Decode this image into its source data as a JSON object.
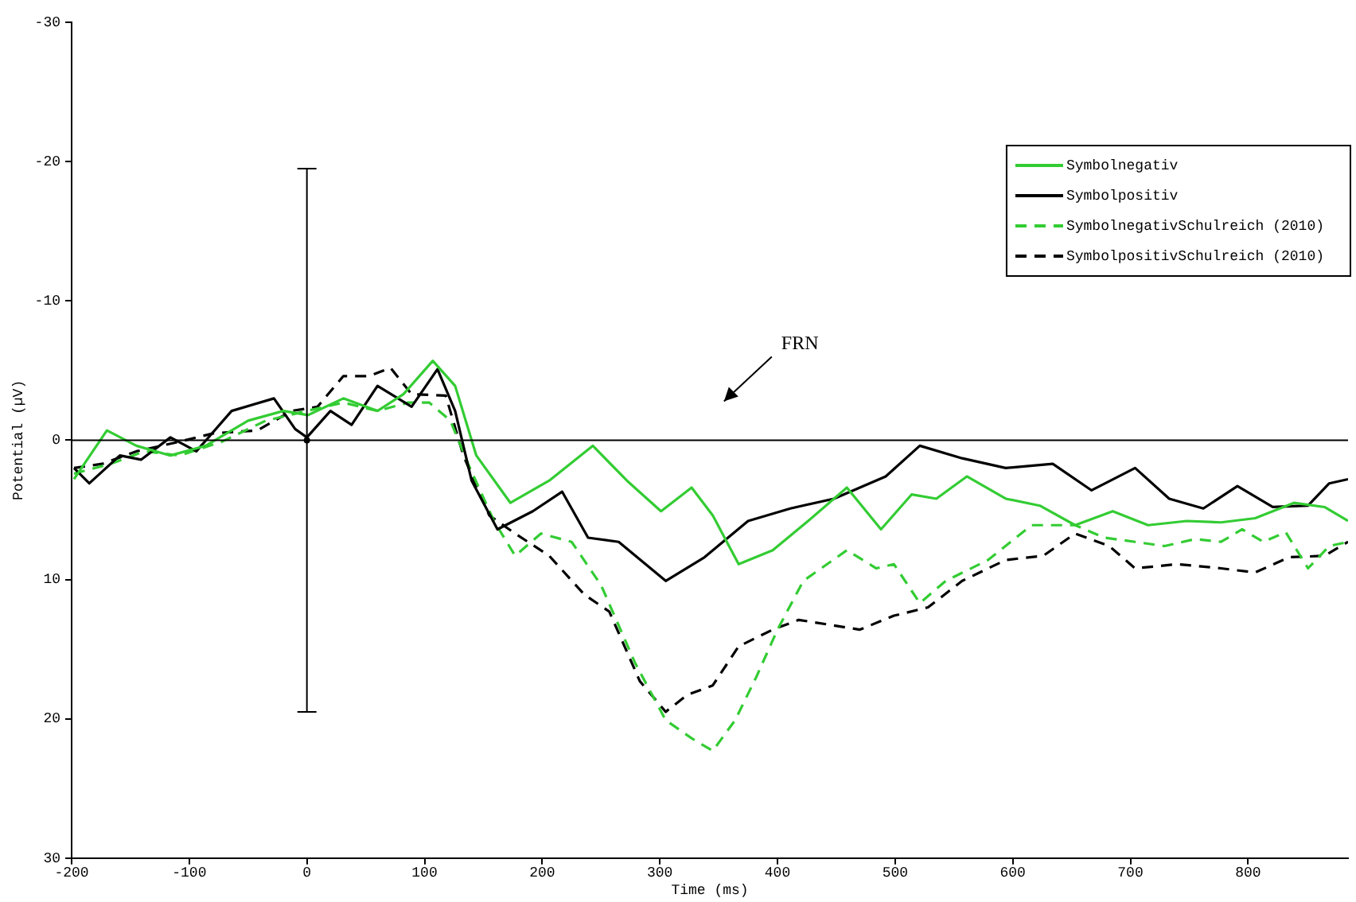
{
  "chart_data": {
    "type": "line",
    "xlabel": "Time (ms)",
    "ylabel": "Potential (µV)",
    "xlim": [
      -200,
      885
    ],
    "xticks": [
      -200,
      -100,
      0,
      100,
      200,
      300,
      400,
      500,
      600,
      700,
      800
    ],
    "ylim": [
      30,
      -30
    ],
    "yticks": [
      -30,
      -20,
      -10,
      0,
      10,
      20,
      30
    ],
    "grid": false,
    "legend": "top right",
    "marker": "none",
    "ref_lines": [
      {
        "axis": "y",
        "value": 0,
        "color": "#000000"
      }
    ],
    "annotations": [
      "FRN"
    ],
    "series": [
      {
        "name": "Symbolnegativ",
        "color": "#33cc33",
        "line_style": "solid",
        "x": [
          -198,
          -170,
          -145,
          -116,
          -86,
          -50,
          -20,
          1,
          31,
          60,
          82,
          107,
          126,
          144,
          173,
          206,
          243,
          272,
          301,
          327,
          345,
          367,
          396,
          426,
          459,
          488,
          514,
          535,
          561,
          594,
          623,
          653,
          685,
          715,
          748,
          777,
          806,
          839,
          865,
          885
        ],
        "values": [
          2.8,
          -0.7,
          0.4,
          1.1,
          0.4,
          -1.4,
          -2.1,
          -1.8,
          -3,
          -2.1,
          -3.3,
          -5.7,
          -3.9,
          1.1,
          4.5,
          2.9,
          0.4,
          2.9,
          5.1,
          3.4,
          5.4,
          8.9,
          7.9,
          5.8,
          3.4,
          6.4,
          3.9,
          4.2,
          2.6,
          4.2,
          4.7,
          6.1,
          5.1,
          6.1,
          5.8,
          5.9,
          5.6,
          4.5,
          4.8,
          5.8
        ]
      },
      {
        "name": "Symbolpositiv",
        "color": "#000000",
        "line_style": "solid",
        "x": [
          -198,
          -185,
          -159,
          -141,
          -116,
          -94,
          -64,
          -28,
          -10,
          0,
          20,
          38,
          60,
          89,
          111,
          126,
          140,
          162,
          192,
          217,
          239,
          265,
          305,
          338,
          375,
          411,
          448,
          492,
          521,
          557,
          594,
          634,
          667,
          704,
          733,
          762,
          791,
          821,
          851,
          869,
          885
        ],
        "values": [
          2,
          3.1,
          1.1,
          1.4,
          -0.2,
          0.8,
          -2.1,
          -3,
          -0.8,
          -0.2,
          -2.1,
          -1.1,
          -3.9,
          -2.4,
          -5.1,
          -2.1,
          2.9,
          6.4,
          5.1,
          3.7,
          7,
          7.3,
          10.1,
          8.4,
          5.8,
          4.9,
          4.2,
          2.6,
          0.4,
          1.3,
          2,
          1.7,
          3.6,
          2,
          4.2,
          4.9,
          3.3,
          4.8,
          4.7,
          3.1,
          2.8
        ]
      },
      {
        "name": "SymbolnegativSchulreich (2010)",
        "color": "#33cc33",
        "line_style": "dashed",
        "x": [
          -198,
          -167,
          -138,
          -108,
          -72,
          -35,
          0,
          31,
          60,
          86,
          104,
          122,
          137,
          159,
          177,
          199,
          225,
          250,
          279,
          305,
          327,
          345,
          364,
          382,
          400,
          422,
          459,
          484,
          499,
          521,
          543,
          579,
          616,
          653,
          678,
          704,
          729,
          755,
          777,
          795,
          813,
          832,
          851,
          869,
          885
        ],
        "values": [
          2.4,
          1.7,
          0.8,
          1.1,
          0.1,
          -1.4,
          -2.1,
          -2.7,
          -2.1,
          -2.7,
          -2.7,
          -1.4,
          1.7,
          5.8,
          8.3,
          6.7,
          7.3,
          10.4,
          16,
          20.1,
          21.4,
          22.3,
          20.1,
          17,
          13.6,
          10.1,
          7.9,
          9.2,
          8.9,
          11.7,
          10.1,
          8.6,
          6.1,
          6.1,
          7,
          7.3,
          7.6,
          7.1,
          7.3,
          6.4,
          7.3,
          6.6,
          9.2,
          7.6,
          7.3
        ]
      },
      {
        "name": "SymbolpositivSchulreich (2010)",
        "color": "#000000",
        "line_style": "dashed",
        "x": [
          -198,
          -174,
          -145,
          -108,
          -79,
          -42,
          -13,
          9,
          31,
          53,
          71,
          89,
          118,
          133,
          155,
          177,
          206,
          236,
          257,
          283,
          305,
          323,
          345,
          367,
          396,
          418,
          448,
          470,
          499,
          528,
          557,
          594,
          626,
          653,
          682,
          704,
          740,
          777,
          806,
          835,
          865,
          885
        ],
        "values": [
          2,
          1.7,
          0.8,
          0.1,
          -0.5,
          -0.7,
          -2.1,
          -2.4,
          -4.6,
          -4.6,
          -5.2,
          -3.3,
          -3.2,
          1.1,
          5.4,
          6.7,
          8.3,
          11.1,
          12.3,
          17.3,
          19.5,
          18.3,
          17.6,
          14.8,
          13.6,
          12.9,
          13.3,
          13.6,
          12.6,
          12,
          10.1,
          8.6,
          8.3,
          6.7,
          7.6,
          9.2,
          8.9,
          9.2,
          9.5,
          8.4,
          8.3,
          7.3
        ]
      },
      {
        "type": "scatter",
        "color": "#000000",
        "marker": "circle",
        "x": [
          0
        ],
        "values": [
          0
        ],
        "errors": [
          19.5
        ]
      }
    ]
  }
}
